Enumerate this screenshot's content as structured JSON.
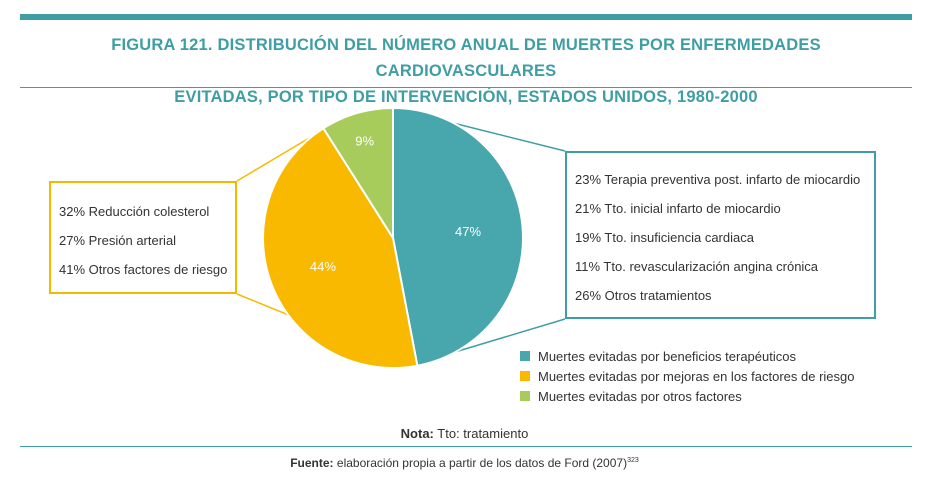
{
  "title_line1": "FIGURA 121. DISTRIBUCIÓN DEL NÚMERO ANUAL DE MUERTES POR ENFERMEDADES CARDIOVASCULARES",
  "title_line2": "EVITADAS, POR TIPO DE INTERVENCIÓN, ESTADOS UNIDOS, 1980-2000",
  "colors": {
    "accent": "#3f9ea3",
    "teal": "#48a6ad",
    "yellow": "#f8b900",
    "green": "#a8cc5c"
  },
  "chart_data": {
    "type": "pie",
    "slices": [
      {
        "label": "Muertes evitadas por beneficios terapéuticos",
        "value": 47,
        "value_label": "47%",
        "color": "#48a6ad"
      },
      {
        "label": "Muertes evitadas por mejoras en los factores de riesgo",
        "value": 44,
        "value_label": "44%",
        "color": "#f8b900"
      },
      {
        "label": "Muertes evitadas por otros factores",
        "value": 9,
        "value_label": "9%",
        "color": "#a8cc5c"
      }
    ],
    "breakdown_risk_factors": [
      "32% Reducción colesterol",
      "27% Presión arterial",
      "41% Otros factores de riesgo"
    ],
    "breakdown_treatments": [
      "23% Terapia preventiva post. infarto de miocardio",
      "21% Tto. inicial infarto de miocardio",
      "19% Tto. insuficiencia cardiaca",
      "11% Tto. revascularización angina crónica",
      "26% Otros tratamientos"
    ],
    "legend_placement": "bottom-right"
  },
  "note": {
    "label": "Nota:",
    "text": " Tto: tratamiento"
  },
  "source": {
    "label": "Fuente:",
    "text": " elaboración propia a partir de los datos de Ford (2007)",
    "superscript": "323"
  }
}
